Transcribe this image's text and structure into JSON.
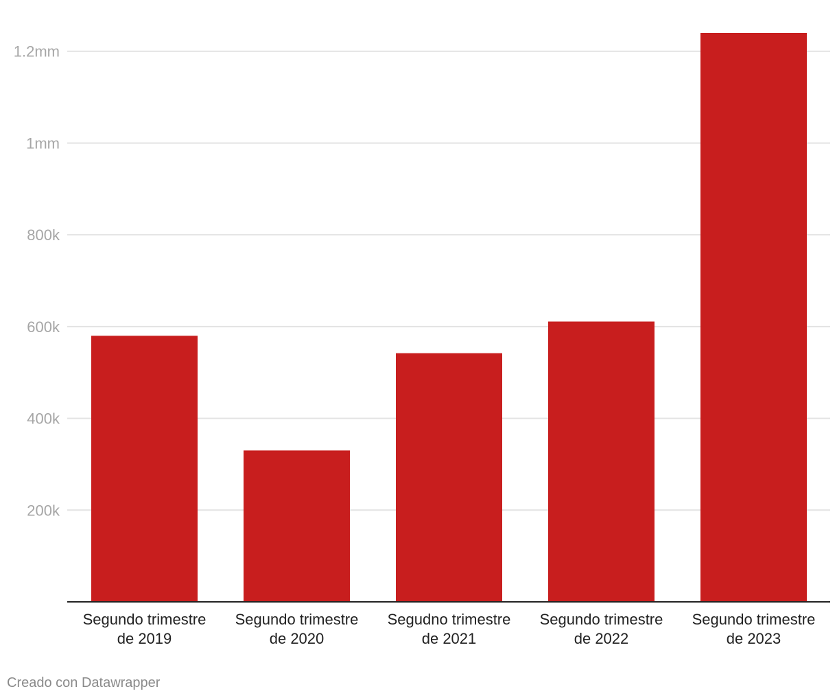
{
  "chart_data": {
    "type": "bar",
    "categories": [
      [
        "Segundo trimestre",
        "de 2019"
      ],
      [
        "Segundo trimestre",
        "de 2020"
      ],
      [
        "Segudno trimestre",
        "de 2021"
      ],
      [
        "Segundo trimestre",
        "de 2022"
      ],
      [
        "Segundo trimestre",
        "de 2023"
      ]
    ],
    "values": [
      580000,
      330000,
      542000,
      611000,
      1240000
    ],
    "yticks": [
      {
        "value": 200000,
        "label": "200k"
      },
      {
        "value": 400000,
        "label": "400k"
      },
      {
        "value": 600000,
        "label": "600k"
      },
      {
        "value": 800000,
        "label": "800k"
      },
      {
        "value": 1000000,
        "label": "1mm"
      },
      {
        "value": 1200000,
        "label": "1.2mm"
      }
    ],
    "ylim": [
      0,
      1240000
    ],
    "grid": true,
    "bar_color": "#c81e1e",
    "gridline_color": "#e3e3e3",
    "baseline_color": "#222222"
  },
  "footer": {
    "credit": "Creado con Datawrapper"
  }
}
